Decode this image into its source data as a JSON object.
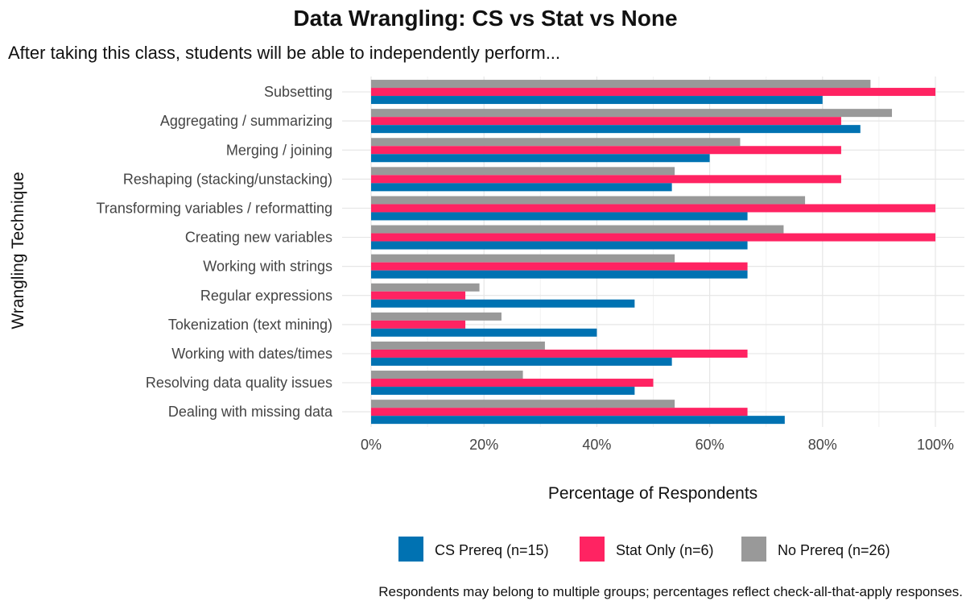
{
  "chart_data": {
    "type": "bar",
    "orientation": "horizontal",
    "title": "Data Wrangling: CS vs Stat vs None",
    "subtitle": "After taking this class, students will be able to independently perform...",
    "xlabel": "Percentage of Respondents",
    "ylabel": "Wrangling Technique",
    "caption": "Respondents may belong to multiple groups; percentages reflect check-all-that-apply responses.",
    "xlim": [
      0,
      100
    ],
    "x_ticks": [
      0,
      20,
      40,
      60,
      80,
      100
    ],
    "x_tick_labels": [
      "0%",
      "20%",
      "40%",
      "60%",
      "80%",
      "100%"
    ],
    "grid": true,
    "legend_position": "bottom",
    "categories": [
      "Subsetting",
      "Aggregating / summarizing",
      "Merging / joining",
      "Reshaping (stacking/unstacking)",
      "Transforming variables / reformatting",
      "Creating new variables",
      "Working with strings",
      "Regular expressions",
      "Tokenization (text mining)",
      "Working with dates/times",
      "Resolving data quality issues",
      "Dealing with missing data"
    ],
    "series": [
      {
        "name": "CS Prereq (n=15)",
        "color": "#0072B2",
        "values": [
          80.0,
          86.7,
          60.0,
          53.3,
          66.7,
          66.7,
          66.7,
          46.7,
          40.0,
          53.3,
          46.7,
          73.3
        ]
      },
      {
        "name": "Stat Only (n=6)",
        "color": "#FF2362",
        "values": [
          100,
          83.3,
          83.3,
          83.3,
          100,
          100,
          66.7,
          16.7,
          16.7,
          66.7,
          50.0,
          66.7
        ]
      },
      {
        "name": "No Prereq (n=26)",
        "color": "#999999",
        "values": [
          88.5,
          92.3,
          65.4,
          53.8,
          76.9,
          73.1,
          53.8,
          19.2,
          23.1,
          30.8,
          26.9,
          53.8
        ]
      }
    ]
  }
}
